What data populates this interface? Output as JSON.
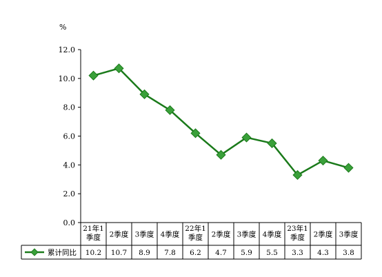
{
  "chart_data": {
    "type": "line",
    "y_unit": "%",
    "ylim": [
      0,
      12
    ],
    "y_ticks": [
      "0.0",
      "2.0",
      "4.0",
      "6.0",
      "8.0",
      "10.0",
      "12.0"
    ],
    "categories": [
      [
        "21年1",
        "季度"
      ],
      [
        "2季度"
      ],
      [
        "3季度"
      ],
      [
        "4季度"
      ],
      [
        "22年1",
        "季度"
      ],
      [
        "2季度"
      ],
      [
        "3季度"
      ],
      [
        "4季度"
      ],
      [
        "23年1",
        "季度"
      ],
      [
        "2季度"
      ],
      [
        "3季度"
      ]
    ],
    "series": [
      {
        "name": "累计同比",
        "color": "#1a7a1a",
        "marker_color": "#3aa03a",
        "values": [
          10.2,
          10.7,
          8.9,
          7.8,
          6.2,
          4.7,
          5.9,
          5.5,
          3.3,
          4.3,
          3.8
        ],
        "value_labels": [
          "10.2",
          "10.7",
          "8.9",
          "7.8",
          "6.2",
          "4.7",
          "5.9",
          "5.5",
          "3.3",
          "4.3",
          "3.8"
        ]
      }
    ],
    "grid": false,
    "legend": "bottom-left data table"
  }
}
